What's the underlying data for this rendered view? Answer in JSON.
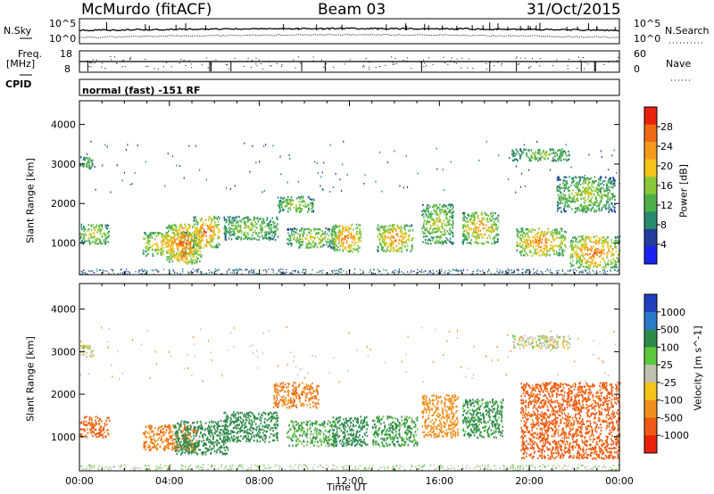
{
  "header": {
    "station": "McMurdo (fitACF)",
    "beam": "Beam 03",
    "date": "31/Oct/2015"
  },
  "noise_panel": {
    "left_label": "N.Sky",
    "right_label": "N.Search",
    "left_ticks": [
      "10^5",
      "10^0"
    ],
    "right_ticks": [
      "10^5",
      "10^0"
    ]
  },
  "freq_panel": {
    "left_label_1": "Freq.",
    "left_label_2": "[MHz]",
    "right_label": "Nave",
    "left_ticks": [
      "18",
      "8"
    ],
    "right_ticks": [
      "60",
      "0"
    ]
  },
  "cpid": {
    "label": "CPID",
    "value": "normal (fast) -151 RF"
  },
  "chart_data": [
    {
      "type": "heatmap",
      "title": "",
      "ylabel": "Slant Range [km]",
      "xlabel": "",
      "ylim": [
        200,
        4600
      ],
      "yticks": [
        "1000",
        "2000",
        "3000",
        "4000"
      ],
      "colorbar_label": "Power [dB]",
      "colorbar_ticks": [
        "4",
        "8",
        "12",
        "16",
        "20",
        "24",
        "28"
      ],
      "colorbar_colors": [
        "#1a22f0",
        "#243c9a",
        "#2a8a6e",
        "#4fb04a",
        "#8ac83a",
        "#f6c419",
        "#f39a1c",
        "#ef6a14",
        "#e8220c"
      ],
      "echo_regions": [
        {
          "t": [
            0.0,
            1.3
          ],
          "r": [
            1000,
            1500
          ],
          "p": 17
        },
        {
          "t": [
            2.8,
            5.2
          ],
          "r": [
            700,
            1300
          ],
          "p": 21
        },
        {
          "t": [
            3.8,
            5.4
          ],
          "r": [
            500,
            1500
          ],
          "p": 25
        },
        {
          "t": [
            5.0,
            6.2
          ],
          "r": [
            900,
            1700
          ],
          "p": 24
        },
        {
          "t": [
            6.4,
            8.8
          ],
          "r": [
            1100,
            1700
          ],
          "p": 14
        },
        {
          "t": [
            8.8,
            10.4
          ],
          "r": [
            1800,
            2200
          ],
          "p": 15
        },
        {
          "t": [
            9.2,
            11.4
          ],
          "r": [
            900,
            1400
          ],
          "p": 16
        },
        {
          "t": [
            11.2,
            12.5
          ],
          "r": [
            800,
            1500
          ],
          "p": 23
        },
        {
          "t": [
            13.2,
            14.8
          ],
          "r": [
            800,
            1500
          ],
          "p": 22
        },
        {
          "t": [
            15.2,
            16.6
          ],
          "r": [
            1000,
            2000
          ],
          "p": 16
        },
        {
          "t": [
            17.0,
            18.6
          ],
          "r": [
            1000,
            1800
          ],
          "p": 20
        },
        {
          "t": [
            19.4,
            21.6
          ],
          "r": [
            700,
            1400
          ],
          "p": 22
        },
        {
          "t": [
            21.8,
            24.0
          ],
          "r": [
            400,
            1200
          ],
          "p": 23
        },
        {
          "t": [
            21.2,
            23.8
          ],
          "r": [
            1800,
            2700
          ],
          "p": 15
        },
        {
          "t": [
            0.0,
            0.6
          ],
          "r": [
            2900,
            3200
          ],
          "p": 13
        },
        {
          "t": [
            19.2,
            21.8
          ],
          "r": [
            3100,
            3400
          ],
          "p": 14
        }
      ]
    },
    {
      "type": "heatmap",
      "title": "",
      "ylabel": "Slant Range [km]",
      "xlabel": "Time UT",
      "ylim": [
        200,
        4600
      ],
      "yticks": [
        "1000",
        "2000",
        "3000",
        "4000"
      ],
      "xticks": [
        "00:00",
        "04:00",
        "08:00",
        "12:00",
        "16:00",
        "20:00",
        "00:00"
      ],
      "xlim": [
        0,
        24
      ],
      "colorbar_label": "Velocity [m s^-1]",
      "colorbar_ticks": [
        "1000",
        "500",
        "100",
        "25",
        "-25",
        "-100",
        "-500",
        "-1000"
      ],
      "colorbar_colors": [
        "#2040c0",
        "#2a7ac8",
        "#2e8a4a",
        "#5cc83e",
        "#c0c0b0",
        "#f6c419",
        "#f0901c",
        "#ef5a14",
        "#e8220c"
      ],
      "echo_regions": [
        {
          "t": [
            0.0,
            1.3
          ],
          "r": [
            1000,
            1500
          ],
          "v": -400
        },
        {
          "t": [
            2.8,
            5.2
          ],
          "r": [
            700,
            1300
          ],
          "v": -300
        },
        {
          "t": [
            4.2,
            6.6
          ],
          "r": [
            600,
            1400
          ],
          "v": 200
        },
        {
          "t": [
            6.4,
            8.8
          ],
          "r": [
            900,
            1600
          ],
          "v": 150
        },
        {
          "t": [
            8.6,
            10.6
          ],
          "r": [
            1700,
            2300
          ],
          "v": -300
        },
        {
          "t": [
            9.2,
            11.4
          ],
          "r": [
            800,
            1400
          ],
          "v": 60
        },
        {
          "t": [
            11.2,
            12.8
          ],
          "r": [
            800,
            1500
          ],
          "v": 250
        },
        {
          "t": [
            13.0,
            15.0
          ],
          "r": [
            800,
            1500
          ],
          "v": 80
        },
        {
          "t": [
            15.2,
            16.8
          ],
          "r": [
            1000,
            2000
          ],
          "v": -200
        },
        {
          "t": [
            17.0,
            18.8
          ],
          "r": [
            1000,
            1900
          ],
          "v": 100
        },
        {
          "t": [
            19.6,
            24.0
          ],
          "r": [
            500,
            2300
          ],
          "v": -450
        },
        {
          "t": [
            0.0,
            0.6
          ],
          "r": [
            2900,
            3200
          ],
          "v": 0
        },
        {
          "t": [
            19.2,
            21.8
          ],
          "r": [
            3100,
            3400
          ],
          "v": 0
        }
      ]
    }
  ]
}
